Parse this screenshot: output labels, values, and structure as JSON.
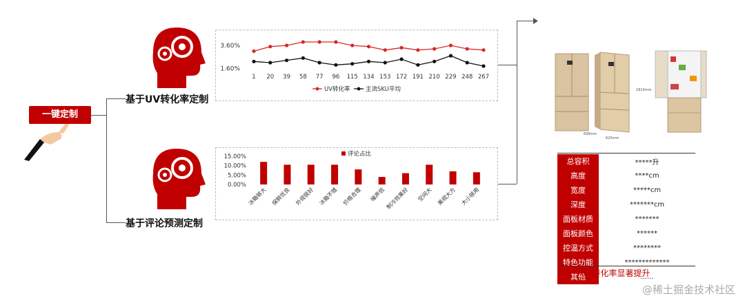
{
  "root_button": {
    "label": "一键定制"
  },
  "branch_top": {
    "label": "基于UV转化率定制"
  },
  "branch_bottom": {
    "label": "基于评论预测定制"
  },
  "line_chart": {
    "y_ticks": [
      "3.60%",
      "1.60%"
    ],
    "legend": [
      "UV转化率",
      "主流SKU平均"
    ]
  },
  "bar_chart": {
    "y_ticks": [
      "15.00%",
      "10.00%",
      "5.00%",
      "0.00%"
    ],
    "legend": "评论占比"
  },
  "chart_data": [
    {
      "type": "line",
      "x": [
        1,
        20,
        39,
        58,
        77,
        96,
        115,
        134,
        153,
        172,
        191,
        210,
        229,
        248,
        267
      ],
      "ylim": [
        1.2,
        4.2
      ],
      "series": [
        {
          "name": "UV转化率",
          "color": "#d62728",
          "values": [
            3.1,
            3.5,
            3.6,
            3.9,
            3.9,
            3.9,
            3.6,
            3.5,
            3.2,
            3.4,
            3.2,
            3.3,
            3.6,
            3.3,
            3.2
          ]
        },
        {
          "name": "主流SKU平均",
          "color": "#111111",
          "values": [
            2.2,
            2.1,
            2.3,
            2.5,
            2.1,
            1.9,
            2.0,
            2.2,
            2.1,
            2.4,
            1.9,
            2.2,
            2.7,
            2.1,
            1.8
          ]
        }
      ]
    },
    {
      "type": "bar",
      "categories": [
        "冰箱够大",
        "保鲜优良",
        "外观很好",
        "冰箱不错",
        "价格合理",
        "噪声低",
        "制冷效果好",
        "空间大",
        "美观大方",
        "大小够用"
      ],
      "values": [
        12.0,
        10.5,
        10.5,
        10.5,
        8.0,
        4.0,
        6.0,
        10.5,
        7.0,
        6.5
      ],
      "ylim": [
        0,
        15
      ],
      "color": "#c00000"
    }
  ],
  "fridge_images": {
    "dim_height": "1810mm",
    "dim_width": "698mm",
    "dim_depth": "625mm"
  },
  "spec_table": {
    "rows": [
      {
        "key": "总容积",
        "value": "*****升"
      },
      {
        "key": "高度",
        "value": "****cm"
      },
      {
        "key": "宽度",
        "value": "*****cm"
      },
      {
        "key": "深度",
        "value": "*******cm"
      },
      {
        "key": "面板材质",
        "value": "*******"
      },
      {
        "key": "面板颜色",
        "value": "******"
      },
      {
        "key": "控温方式",
        "value": "********"
      },
      {
        "key": "特色功能",
        "value": "*************"
      },
      {
        "key": "其他",
        "value": "......"
      }
    ],
    "caption": "UV转化率显著提升"
  },
  "watermark": "@稀土掘金技术社区",
  "colors": {
    "accent": "#c00000"
  }
}
